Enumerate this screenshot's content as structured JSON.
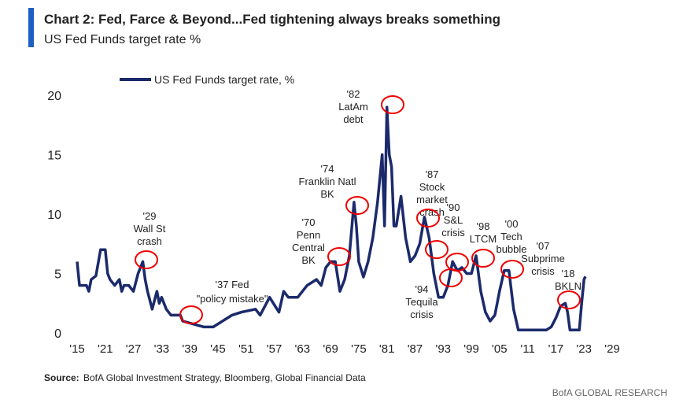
{
  "chart_data": {
    "type": "line",
    "title": "Chart 2: Fed, Farce & Beyond...Fed tightening always breaks something",
    "subtitle": "US Fed Funds target rate %",
    "source_label": "Source:",
    "source_text": "BofA Global Investment Strategy, Bloomberg, Global Financial Data",
    "brand": "BofA GLOBAL RESEARCH",
    "xlim": [
      1915,
      2029
    ],
    "ylim": [
      0,
      20
    ],
    "xticks": [
      {
        "value": 1915,
        "label": "'15"
      },
      {
        "value": 1921,
        "label": "'21"
      },
      {
        "value": 1927,
        "label": "'27"
      },
      {
        "value": 1933,
        "label": "'33"
      },
      {
        "value": 1939,
        "label": "'39"
      },
      {
        "value": 1945,
        "label": "'45"
      },
      {
        "value": 1951,
        "label": "'51"
      },
      {
        "value": 1957,
        "label": "'57"
      },
      {
        "value": 1963,
        "label": "'63"
      },
      {
        "value": 1969,
        "label": "'69"
      },
      {
        "value": 1975,
        "label": "'75"
      },
      {
        "value": 1981,
        "label": "'81"
      },
      {
        "value": 1987,
        "label": "'87"
      },
      {
        "value": 1993,
        "label": "'93"
      },
      {
        "value": 1999,
        "label": "'99"
      },
      {
        "value": 2005,
        "label": "'05"
      },
      {
        "value": 2011,
        "label": "'11"
      },
      {
        "value": 2017,
        "label": "'17"
      },
      {
        "value": 2023,
        "label": "'23"
      },
      {
        "value": 2029,
        "label": "'29"
      }
    ],
    "yticks": [
      0,
      5,
      10,
      15,
      20
    ],
    "series": [
      {
        "name": "US Fed Funds target rate, %",
        "color": "#1b2a6b",
        "x": [
          1915,
          1915.5,
          1917,
          1917.5,
          1918,
          1919,
          1920,
          1921,
          1921.5,
          1922,
          1923,
          1924,
          1924.5,
          1925,
          1926,
          1927,
          1928,
          1929,
          1929.5,
          1930,
          1931,
          1932,
          1932.5,
          1933,
          1934,
          1935,
          1937,
          1937.5,
          1942,
          1944,
          1946,
          1948,
          1950,
          1953,
          1954,
          1956,
          1958,
          1959,
          1960,
          1962,
          1964,
          1966,
          1967,
          1968,
          1969,
          1970,
          1971,
          1972,
          1973,
          1974,
          1974.5,
          1975,
          1976,
          1977,
          1978,
          1979,
          1980,
          1980.5,
          1981,
          1981.5,
          1982,
          1982.5,
          1983,
          1984,
          1985,
          1986,
          1987,
          1988,
          1989,
          1990,
          1991,
          1992,
          1993,
          1994,
          1995,
          1996,
          1997,
          1998,
          1999,
          2000,
          2001,
          2002,
          2003,
          2004,
          2005,
          2006,
          2007,
          2008,
          2009,
          2015,
          2016,
          2017,
          2018,
          2019,
          2019.5,
          2020,
          2022,
          2022.5,
          2023,
          2023.3
        ],
        "values": [
          6,
          4,
          4,
          3.5,
          4.5,
          4.8,
          7,
          7,
          5,
          4.5,
          4,
          4.5,
          3.5,
          4,
          4,
          3.5,
          5,
          6,
          4.5,
          3.5,
          2,
          3.5,
          2.5,
          3,
          2,
          1.5,
          1.5,
          1,
          0.5,
          0.5,
          1,
          1.5,
          1.75,
          2,
          1.5,
          3,
          1.75,
          3.5,
          3,
          3,
          4,
          4.5,
          4,
          5.5,
          6,
          6,
          3.5,
          4.5,
          6.5,
          11,
          9,
          6,
          4.7,
          6,
          8,
          11,
          15,
          9,
          19,
          15,
          14,
          9,
          9,
          11.5,
          8,
          6,
          6.5,
          7.5,
          9.75,
          8,
          5,
          3,
          3,
          4,
          6,
          5.25,
          5.5,
          5,
          5,
          6.5,
          3.5,
          1.75,
          1,
          1.5,
          3.5,
          5.25,
          5.25,
          2,
          0.25,
          0.25,
          0.5,
          1.25,
          2.25,
          2.5,
          1.75,
          0.25,
          0.25,
          2.5,
          4.5,
          4.75
        ]
      }
    ],
    "annotations": [
      [
        "'29",
        "Wall St",
        "crash"
      ],
      [
        "'37 Fed",
        "\"policy mistake\""
      ],
      [
        "'70",
        "Penn",
        "Central",
        "BK"
      ],
      [
        "'74",
        "Franklin Natl",
        "BK"
      ],
      [
        "'82",
        "LatAm",
        "debt"
      ],
      [
        "'87",
        "Stock",
        "market",
        "crash"
      ],
      [
        "'90",
        "S&L",
        "crisis"
      ],
      [
        "'94",
        "Tequila",
        "crisis"
      ],
      [
        "'98",
        "LTCM"
      ],
      [
        "'00",
        "Tech",
        "bubble"
      ],
      [
        "'07",
        "Subprime",
        "crisis"
      ],
      [
        "'18",
        "BKLN"
      ]
    ]
  }
}
